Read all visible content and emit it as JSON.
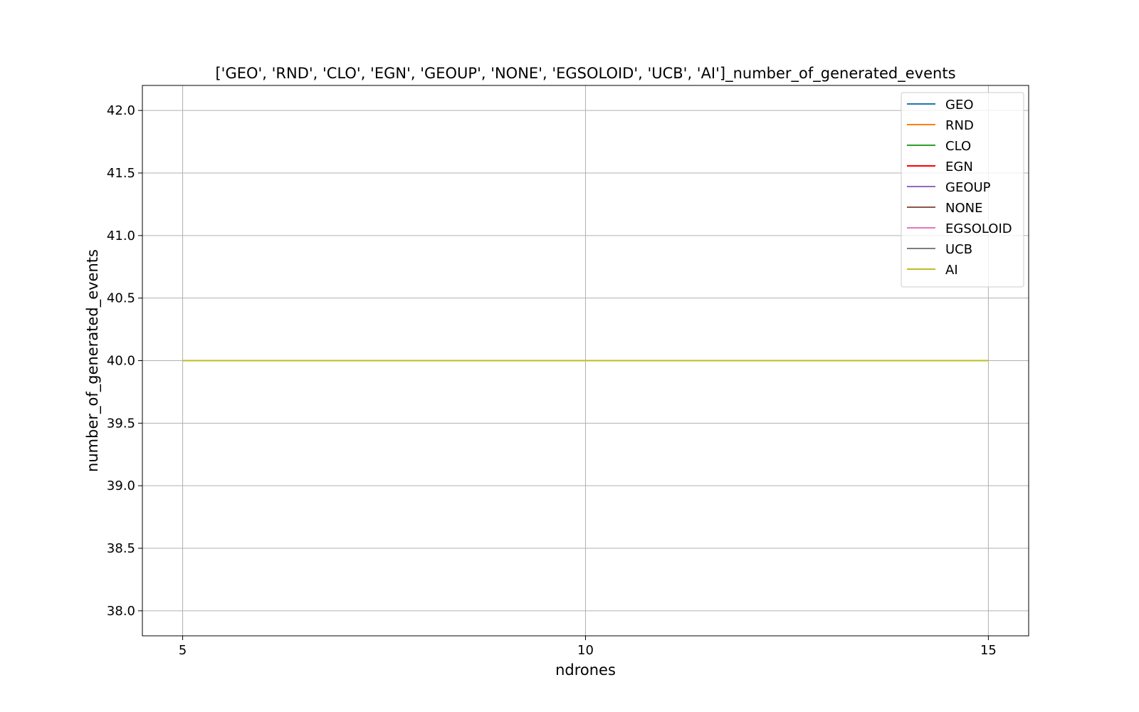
{
  "chart_data": {
    "type": "line",
    "title": "['GEO', 'RND', 'CLO', 'EGN', 'GEOUP', 'NONE', 'EGSOLOID', 'UCB', 'AI']_number_of_generated_events",
    "xlabel": "ndrones",
    "ylabel": "number_of_generated_events",
    "x": [
      5,
      10,
      15
    ],
    "xlim": [
      4.5,
      15.5
    ],
    "ylim": [
      37.8,
      42.2
    ],
    "xticks": [
      "5",
      "10",
      "15"
    ],
    "yticks": [
      "38.0",
      "38.5",
      "39.0",
      "39.5",
      "40.0",
      "40.5",
      "41.0",
      "41.5",
      "42.0"
    ],
    "grid": true,
    "legend_position": "top-right",
    "series": [
      {
        "name": "GEO",
        "color": "#1f77b4",
        "values": [
          40,
          40,
          40
        ]
      },
      {
        "name": "RND",
        "color": "#ff7f0e",
        "values": [
          40,
          40,
          40
        ]
      },
      {
        "name": "CLO",
        "color": "#2ca02c",
        "values": [
          40,
          40,
          40
        ]
      },
      {
        "name": "EGN",
        "color": "#ff0000",
        "values": [
          40,
          40,
          40
        ]
      },
      {
        "name": "GEOUP",
        "color": "#9467bd",
        "values": [
          40,
          40,
          40
        ]
      },
      {
        "name": "NONE",
        "color": "#8c564b",
        "values": [
          40,
          40,
          40
        ]
      },
      {
        "name": "EGSOLOID",
        "color": "#e377c2",
        "values": [
          40,
          40,
          40
        ]
      },
      {
        "name": "UCB",
        "color": "#7f7f7f",
        "values": [
          40,
          40,
          40
        ]
      },
      {
        "name": "AI",
        "color": "#bcbd22",
        "values": [
          40,
          40,
          40
        ]
      }
    ]
  }
}
